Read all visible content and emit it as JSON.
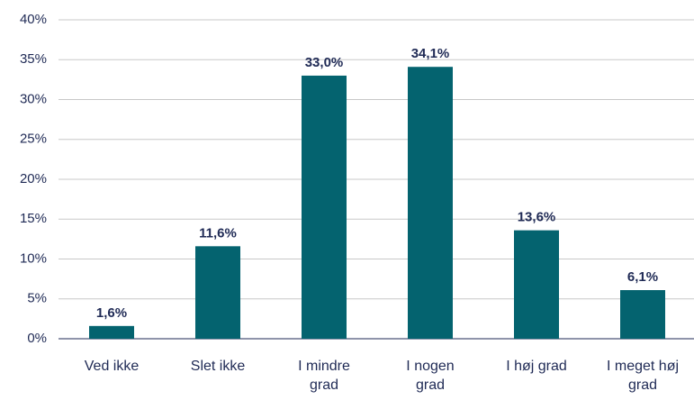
{
  "chart_data": {
    "type": "bar",
    "categories": [
      "Ved ikke",
      "Slet ikke",
      "I mindre grad",
      "I nogen grad",
      "I høj grad",
      "I meget høj grad"
    ],
    "values": [
      1.6,
      11.6,
      33.0,
      34.1,
      13.6,
      6.1
    ],
    "value_labels": [
      "1,6%",
      "11,6%",
      "33,0%",
      "34,1%",
      "13,6%",
      "6,1%"
    ],
    "color": "#04636f",
    "ylim": [
      0,
      40
    ],
    "yticks": [
      {
        "value": 0,
        "label": "0%"
      },
      {
        "value": 5,
        "label": "5%"
      },
      {
        "value": 10,
        "label": "10%"
      },
      {
        "value": 15,
        "label": "15%"
      },
      {
        "value": 20,
        "label": "20%"
      },
      {
        "value": 25,
        "label": "25%"
      },
      {
        "value": 30,
        "label": "30%"
      },
      {
        "value": 35,
        "label": "35%"
      },
      {
        "value": 40,
        "label": "40%"
      }
    ],
    "grid": true
  }
}
